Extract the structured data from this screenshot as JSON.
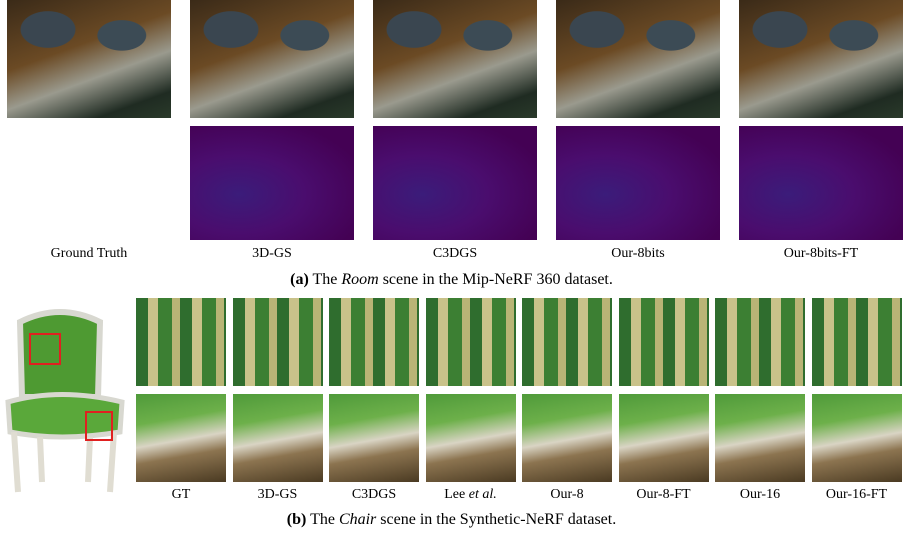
{
  "figure_a": {
    "labels": [
      "Ground Truth",
      "3D-GS",
      "C3DGS",
      "Our-8bits",
      "Our-8bits-FT"
    ],
    "caption": {
      "tag": "(a)",
      "pre": "The",
      "scene": "Room",
      "post": "scene in the Mip-NeRF 360 dataset."
    }
  },
  "figure_b": {
    "labels": [
      "GT",
      "3D-GS",
      "C3DGS",
      "Lee",
      "Our-8",
      "Our-8-FT",
      "Our-16",
      "Our-16-FT"
    ],
    "label_suffix": "et al.",
    "caption": {
      "tag": "(b)",
      "pre": "The",
      "scene": "Chair",
      "post": "scene in the Synthetic-NeRF dataset."
    }
  }
}
